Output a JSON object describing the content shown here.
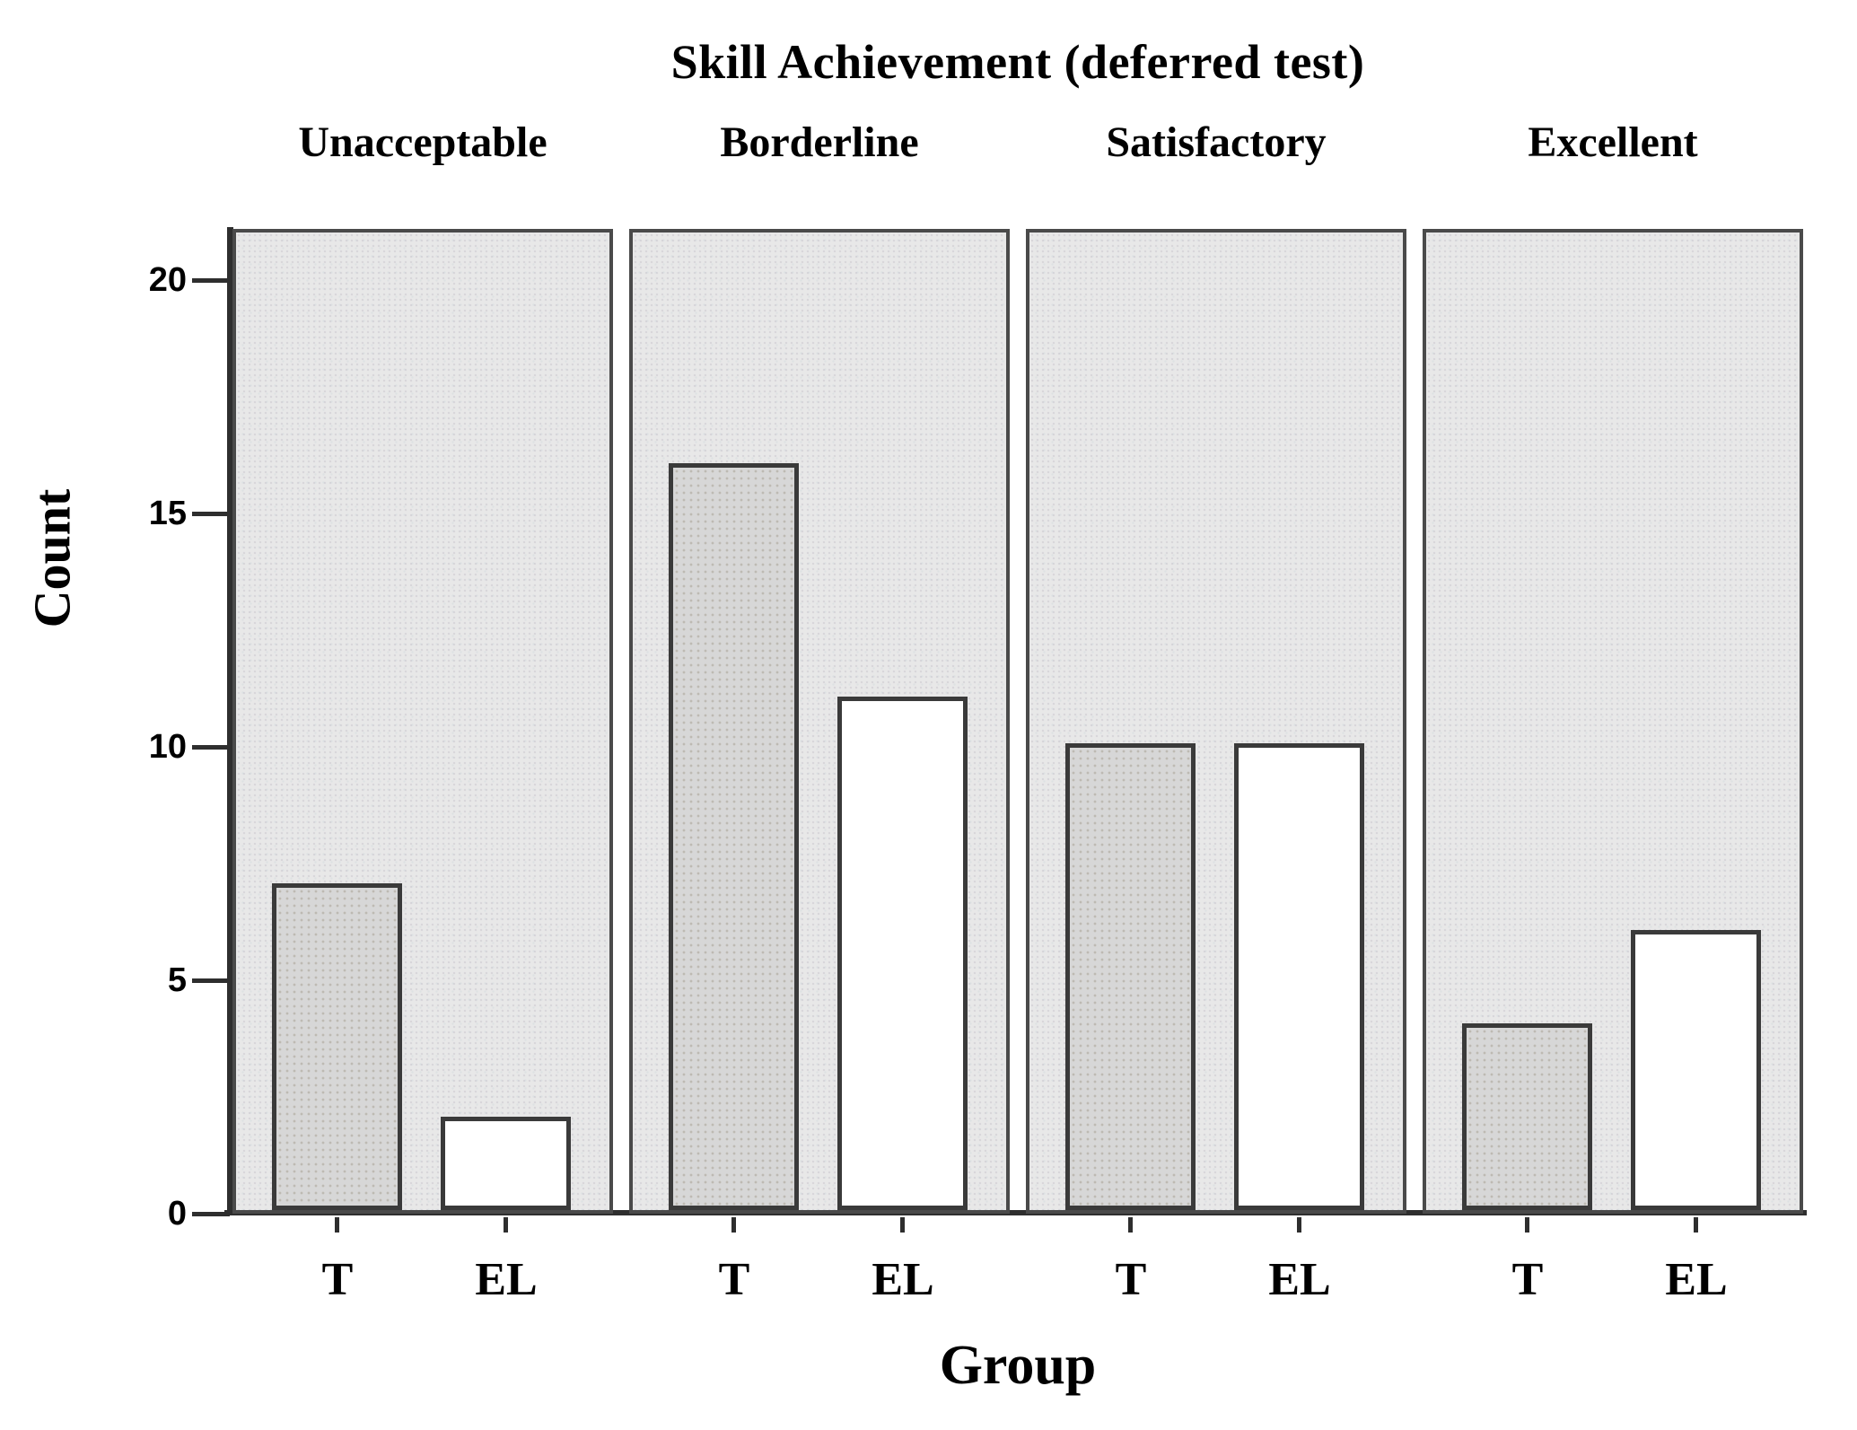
{
  "chart_data": {
    "type": "bar",
    "title": "Skill Achievement (deferred test)",
    "xlabel": "Group",
    "ylabel": "Count",
    "ylim": [
      0,
      21
    ],
    "yticks": [
      0,
      5,
      10,
      15,
      20
    ],
    "grid": false,
    "legend": "none",
    "panel_layout": "4 side-by-side panels sharing one y-axis",
    "categories": [
      "T",
      "EL"
    ],
    "panels": [
      {
        "label": "Unacceptable",
        "bars": [
          {
            "category": "T",
            "value": 7
          },
          {
            "category": "EL",
            "value": 2
          }
        ]
      },
      {
        "label": "Borderline",
        "bars": [
          {
            "category": "T",
            "value": 16
          },
          {
            "category": "EL",
            "value": 11
          }
        ]
      },
      {
        "label": "Satisfactory",
        "bars": [
          {
            "category": "T",
            "value": 10
          },
          {
            "category": "EL",
            "value": 10
          }
        ]
      },
      {
        "label": "Excellent",
        "bars": [
          {
            "category": "T",
            "value": 4
          },
          {
            "category": "EL",
            "value": 6
          }
        ]
      }
    ],
    "colors": {
      "panel_bg": "#e8e8e8",
      "panel_border": "#4a4a4a",
      "bar_t_fill": "#d7d7d7",
      "bar_el_fill": "#ffffff",
      "bar_border": "#3a3a3a",
      "axis": "#2e2e2e",
      "text": "#000000",
      "page_bg": "#ffffff"
    }
  }
}
